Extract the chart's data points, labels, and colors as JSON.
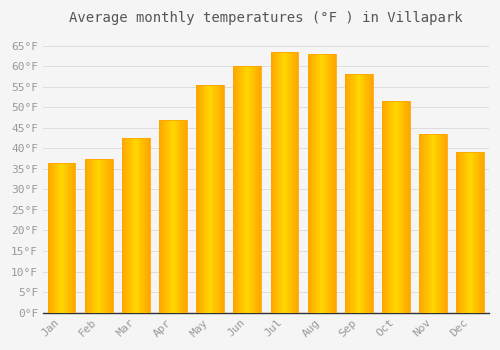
{
  "title": "Average monthly temperatures (°F ) in Villapark",
  "months": [
    "Jan",
    "Feb",
    "Mar",
    "Apr",
    "May",
    "Jun",
    "Jul",
    "Aug",
    "Sep",
    "Oct",
    "Nov",
    "Dec"
  ],
  "values": [
    36.5,
    37.5,
    42.5,
    47.0,
    55.5,
    60.0,
    63.5,
    63.0,
    58.0,
    51.5,
    43.5,
    39.0
  ],
  "bar_color_center": "#FFD700",
  "bar_color_edge": "#FFA500",
  "background_color": "#f5f5f5",
  "plot_bg_color": "#f5f5f5",
  "grid_color": "#dddddd",
  "title_fontsize": 10,
  "tick_fontsize": 8,
  "tick_color": "#999999",
  "title_color": "#555555",
  "ylim": [
    0,
    68
  ],
  "yticks": [
    0,
    5,
    10,
    15,
    20,
    25,
    30,
    35,
    40,
    45,
    50,
    55,
    60,
    65
  ],
  "bar_width": 0.75
}
